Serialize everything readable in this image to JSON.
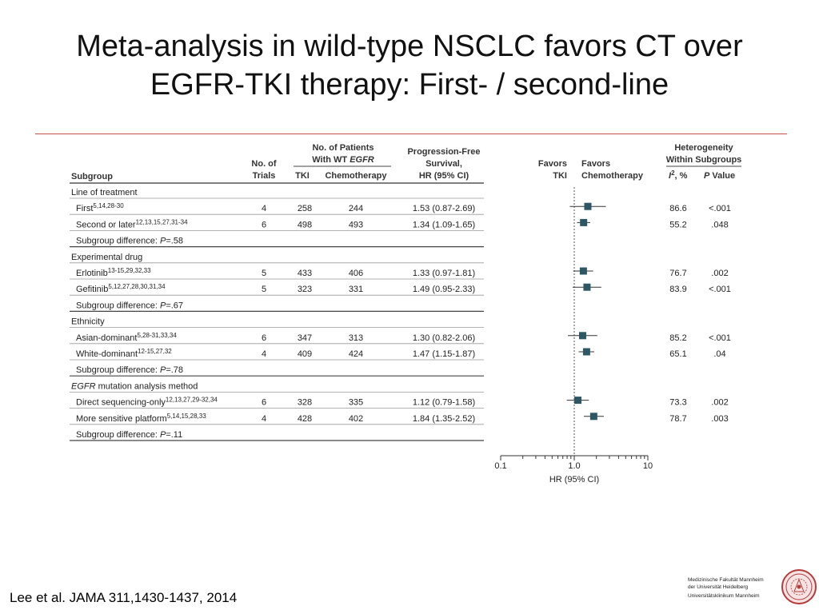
{
  "slide": {
    "title_line1": "Meta-analysis in wild-type NSCLC favors CT over",
    "title_line2": "EGFR-TKI therapy: First- / second-line",
    "citation": "Lee et al. JAMA 311,1430-1437, 2014",
    "logo": {
      "line1": "Medizinische Fakultät Mannheim",
      "line2": "der Universität Heidelberg",
      "line3": "Universitätsklinikum Mannheim"
    },
    "accent_color": "#c0504d"
  },
  "table": {
    "headers": {
      "subgroup": "Subgroup",
      "trials": [
        "No. of",
        "Trials"
      ],
      "patients": [
        "No. of Patients",
        "With WT "
      ],
      "patients_egfr": "EGFR",
      "tki": "TKI",
      "chemo": "Chemotherapy",
      "pfs": [
        "Progression-Free",
        "Survival,",
        "HR (95% CI)"
      ],
      "favors_tki": [
        "Favors",
        "TKI"
      ],
      "favors_chemo": [
        "Favors",
        "Chemotherapy"
      ],
      "heterogeneity": [
        "Heterogeneity",
        "Within Subgroups"
      ],
      "i2": "I",
      "i2_rest": ", %",
      "p": "P",
      "p_rest": " Value"
    },
    "sections": [
      {
        "title": "Line of treatment",
        "rows": [
          {
            "label": "First",
            "sup": "5,14,28-30",
            "trials": "4",
            "tki": "258",
            "chemo": "244",
            "hr_text": "1.53 (0.87-2.69)",
            "i2": "86.6",
            "p": "<.001"
          },
          {
            "label": "Second or later",
            "sup": "12,13,15,27,31-34",
            "trials": "6",
            "tki": "498",
            "chemo": "493",
            "hr_text": "1.34 (1.09-1.65)",
            "i2": "55.2",
            "p": ".048"
          }
        ],
        "diff_label": "Subgroup difference: ",
        "diff_p": "P",
        "diff_value": "=.58"
      },
      {
        "title": "Experimental drug",
        "rows": [
          {
            "label": "Erlotinib",
            "sup": "13-15,29,32,33",
            "trials": "5",
            "tki": "433",
            "chemo": "406",
            "hr_text": "1.33 (0.97-1.81)",
            "i2": "76.7",
            "p": ".002"
          },
          {
            "label": "Gefitinib",
            "sup": "5,12,27,28,30,31,34",
            "trials": "5",
            "tki": "323",
            "chemo": "331",
            "hr_text": "1.49 (0.95-2.33)",
            "i2": "83.9",
            "p": "<.001"
          }
        ],
        "diff_label": "Subgroup difference: ",
        "diff_p": "P",
        "diff_value": "=.67"
      },
      {
        "title": "Ethnicity",
        "rows": [
          {
            "label": "Asian-dominant",
            "sup": "5,28-31,33,34",
            "trials": "6",
            "tki": "347",
            "chemo": "313",
            "hr_text": "1.30 (0.82-2.06)",
            "i2": "85.2",
            "p": "<.001"
          },
          {
            "label": "White-dominant",
            "sup": "12-15,27,32",
            "trials": "4",
            "tki": "409",
            "chemo": "424",
            "hr_text": "1.47 (1.15-1.87)",
            "i2": "65.1",
            "p": ".04"
          }
        ],
        "diff_label": "Subgroup difference: ",
        "diff_p": "P",
        "diff_value": "=.78"
      },
      {
        "title": " mutation analysis method",
        "title_em": "EGFR",
        "rows": [
          {
            "label": "Direct sequencing-only",
            "sup": "12,13,27,29-32,34",
            "trials": "6",
            "tki": "328",
            "chemo": "335",
            "hr_text": "1.12 (0.79-1.58)",
            "i2": "73.3",
            "p": ".002"
          },
          {
            "label": "More sensitive platform",
            "sup": "5,14,15,28,33",
            "trials": "4",
            "tki": "428",
            "chemo": "402",
            "hr_text": "1.84 (1.35-2.52)",
            "i2": "78.7",
            "p": ".003"
          }
        ],
        "diff_label": "Subgroup difference: ",
        "diff_p": "P",
        "diff_value": "=.11"
      }
    ]
  },
  "chart_data": {
    "type": "scatter",
    "subtype": "forest",
    "xlabel": "HR (95% CI)",
    "xscale": "log",
    "xlim": [
      0.1,
      10
    ],
    "ticks": [
      "0.1",
      "1.0",
      "10"
    ],
    "reference_line": 1.0,
    "marker_color": "#2e5766",
    "points": [
      {
        "label": "First",
        "hr": 1.53,
        "lo": 0.87,
        "hi": 2.69
      },
      {
        "label": "Second or later",
        "hr": 1.34,
        "lo": 1.09,
        "hi": 1.65
      },
      {
        "label": "Erlotinib",
        "hr": 1.33,
        "lo": 0.97,
        "hi": 1.81
      },
      {
        "label": "Gefitinib",
        "hr": 1.49,
        "lo": 0.95,
        "hi": 2.33
      },
      {
        "label": "Asian-dominant",
        "hr": 1.3,
        "lo": 0.82,
        "hi": 2.06
      },
      {
        "label": "White-dominant",
        "hr": 1.47,
        "lo": 1.15,
        "hi": 1.87
      },
      {
        "label": "Direct sequencing-only",
        "hr": 1.12,
        "lo": 0.79,
        "hi": 1.58
      },
      {
        "label": "More sensitive platform",
        "hr": 1.84,
        "lo": 1.35,
        "hi": 2.52
      }
    ]
  }
}
